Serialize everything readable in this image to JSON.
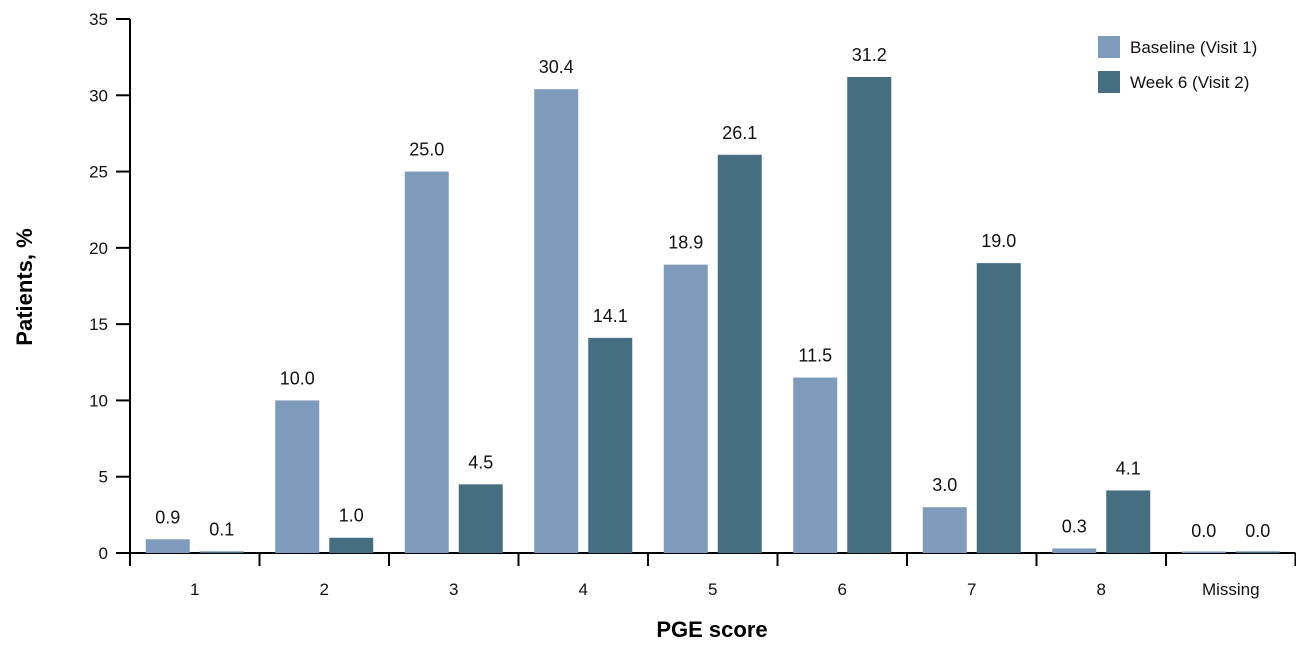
{
  "chart_data": {
    "type": "bar",
    "xlabel": "PGE score",
    "ylabel": "Patients, %",
    "ylim": [
      0,
      35
    ],
    "yticks": [
      0,
      5,
      10,
      15,
      20,
      25,
      30,
      35
    ],
    "categories": [
      "1",
      "2",
      "3",
      "4",
      "5",
      "6",
      "7",
      "8",
      "Missing"
    ],
    "series": [
      {
        "name": "Baseline (Visit 1)",
        "color": "#7e9bbc",
        "values": [
          0.9,
          10.0,
          25.0,
          30.4,
          18.9,
          11.5,
          3.0,
          0.3,
          0.0
        ],
        "labels": [
          "0.9",
          "10.0",
          "25.0",
          "30.4",
          "18.9",
          "11.5",
          "3.0",
          "0.3",
          "0.0"
        ]
      },
      {
        "name": "Week 6 (Visit 2)",
        "color": "#456f80",
        "values": [
          0.1,
          1.0,
          4.5,
          14.1,
          26.1,
          31.2,
          19.0,
          4.1,
          0.0
        ],
        "labels": [
          "0.1",
          "1.0",
          "4.5",
          "14.1",
          "26.1",
          "31.2",
          "19.0",
          "4.1",
          "0.0"
        ]
      }
    ],
    "legend_position": "top-right",
    "grid": false
  }
}
